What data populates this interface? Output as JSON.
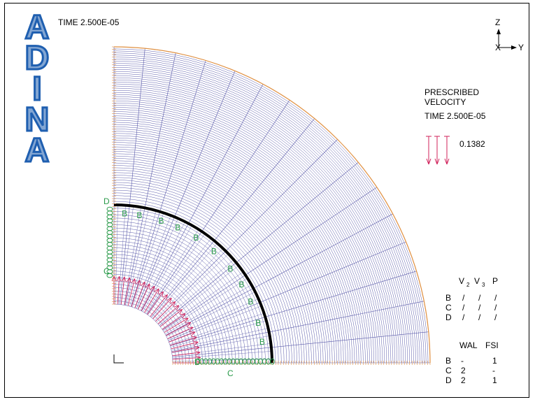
{
  "logo": {
    "letters": [
      "A",
      "D",
      "I",
      "N",
      "A"
    ],
    "color": "#1f5fb0"
  },
  "time_label": "TIME 2.500E-05",
  "axes": {
    "z": "Z",
    "x": "X",
    "y": "Y"
  },
  "prescribed": {
    "line1": "PRESCRIBED",
    "line2": "VELOCITY",
    "time": "TIME 2.500E-05",
    "value": "0.1382",
    "color": "#d0205a"
  },
  "mesh": {
    "color": "#5a5aaa",
    "outer_color": "#e09040",
    "interface_color": "#000000"
  },
  "bc_markers": {
    "label_b": "B",
    "label_c": "C",
    "label_d": "D",
    "color": "#2a9a4a"
  },
  "fixity_table": {
    "header": [
      "V2",
      "V3",
      "P"
    ],
    "rows": [
      {
        "label": "B",
        "v2": "/",
        "v3": "/",
        "p": "/"
      },
      {
        "label": "C",
        "v2": "/",
        "v3": "/",
        "p": "/"
      },
      {
        "label": "D",
        "v2": "/",
        "v3": "/",
        "p": "/"
      }
    ]
  },
  "wall_table": {
    "header": [
      "WAL",
      "FSI"
    ],
    "rows": [
      {
        "label": "B",
        "wal": "-",
        "fsi": "1"
      },
      {
        "label": "C",
        "wal": "2",
        "fsi": "-"
      },
      {
        "label": "D",
        "wal": "2",
        "fsi": "1"
      }
    ]
  }
}
